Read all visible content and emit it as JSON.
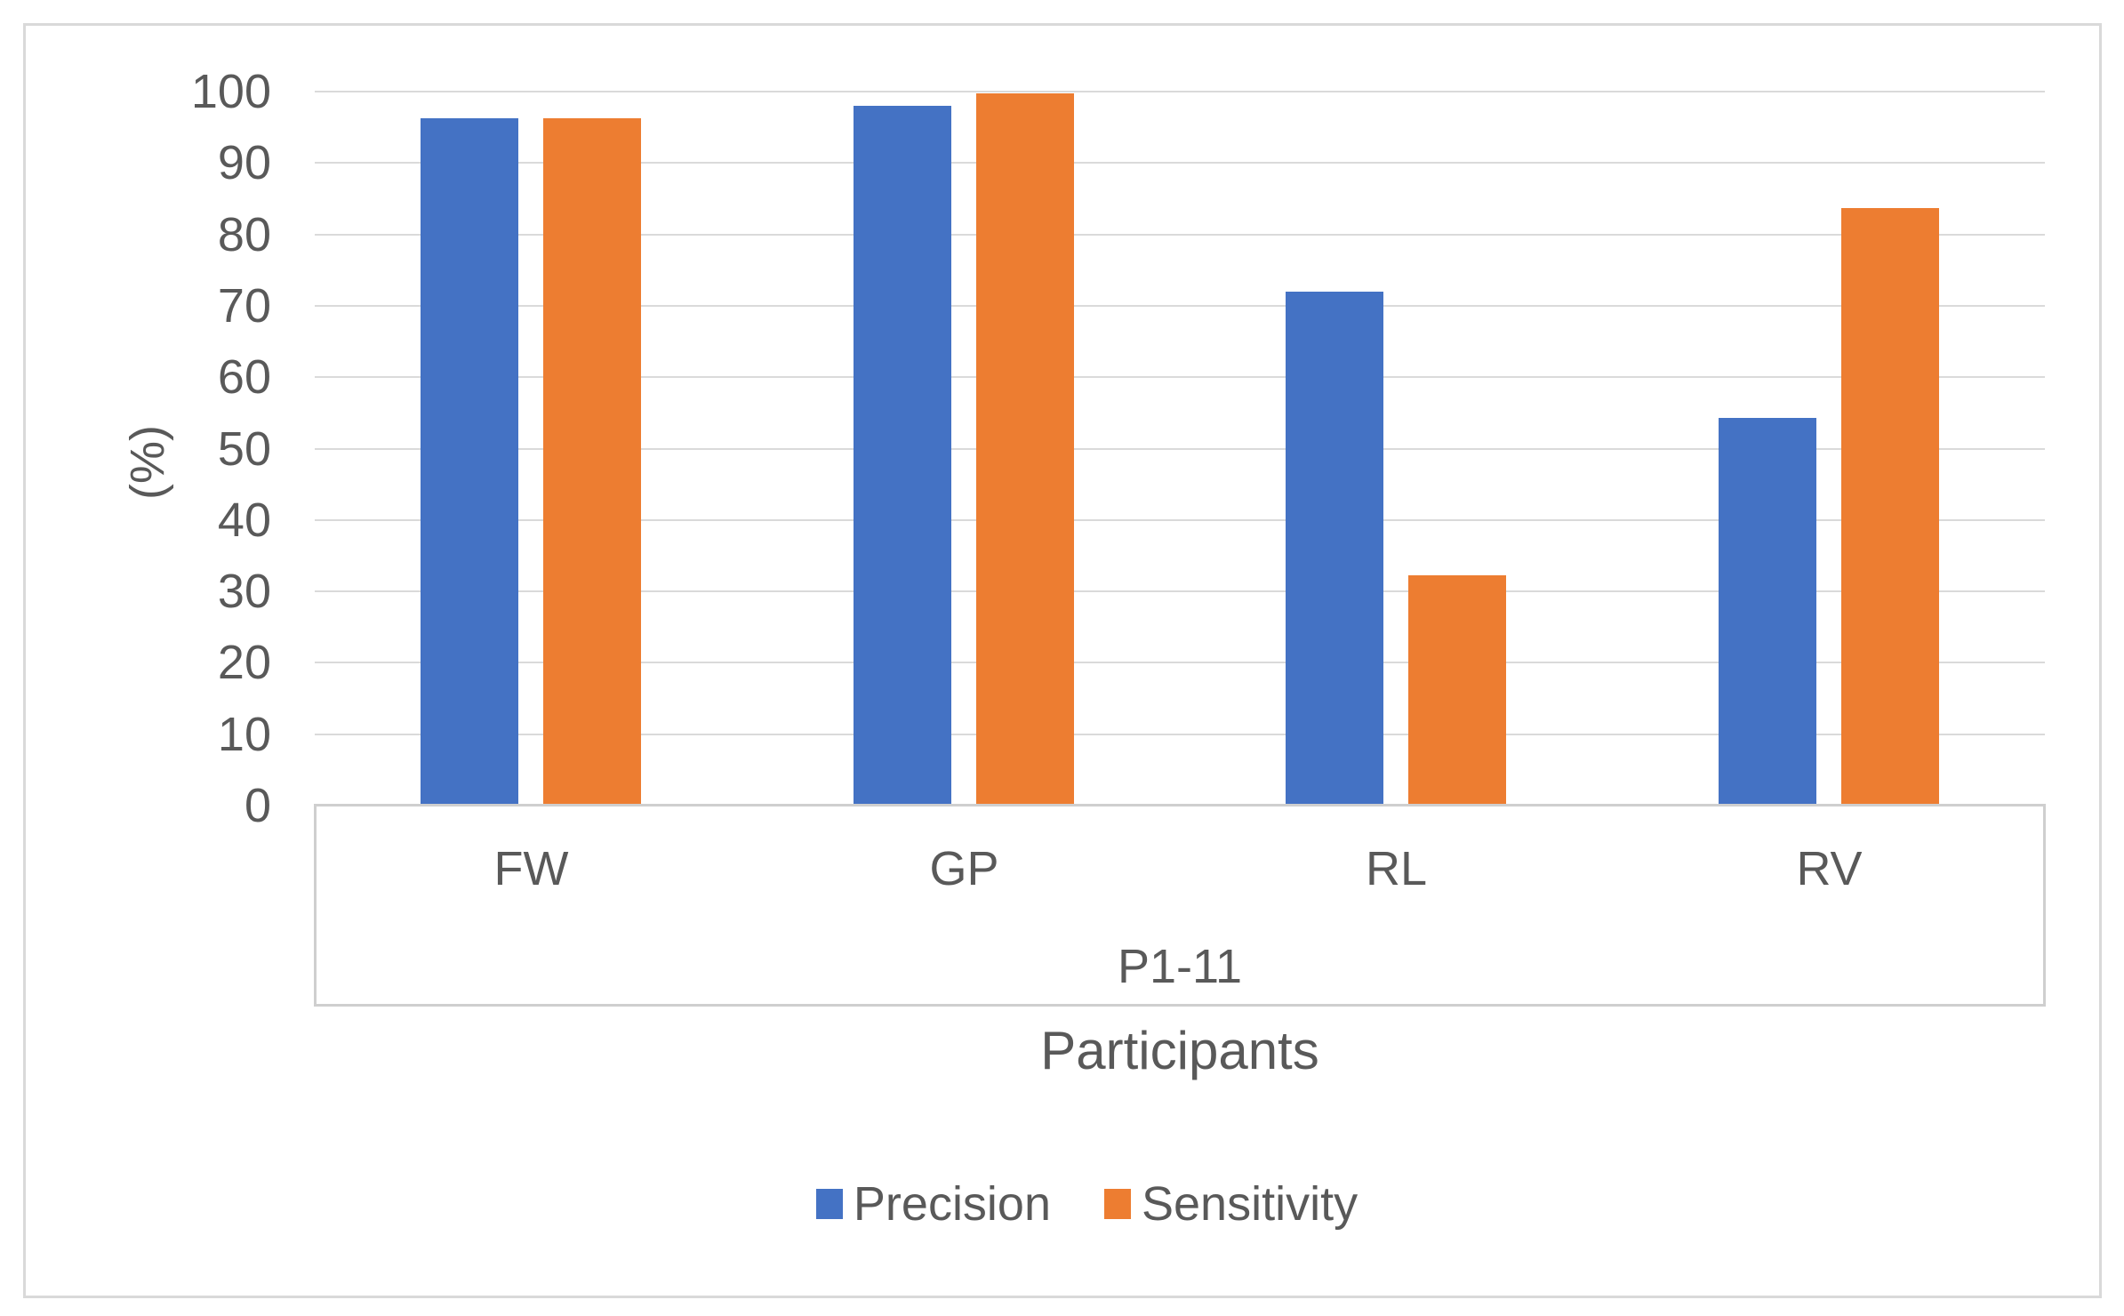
{
  "chart_data": {
    "type": "bar",
    "categories": [
      "FW",
      "GP",
      "RL",
      "RV"
    ],
    "series": [
      {
        "name": "Precision",
        "color": "#4472C4",
        "values": [
          96.3,
          98.0,
          72.0,
          54.3
        ]
      },
      {
        "name": "Sensitivity",
        "color": "#ED7D31",
        "values": [
          96.3,
          99.8,
          32.3,
          83.7
        ]
      }
    ],
    "group_label": "P1-11",
    "xlabel": "Participants",
    "ylabel": "(%)",
    "ylim": [
      0,
      100
    ],
    "yticks": [
      0,
      10,
      20,
      30,
      40,
      50,
      60,
      70,
      80,
      90,
      100
    ],
    "grid": true,
    "legend_position": "bottom",
    "colors": {
      "text": "#595959",
      "gridline": "#DADADA",
      "axis_line": "#CFCFCF",
      "frame_border": "#D9D9D9",
      "background": "#FFFFFF"
    }
  }
}
